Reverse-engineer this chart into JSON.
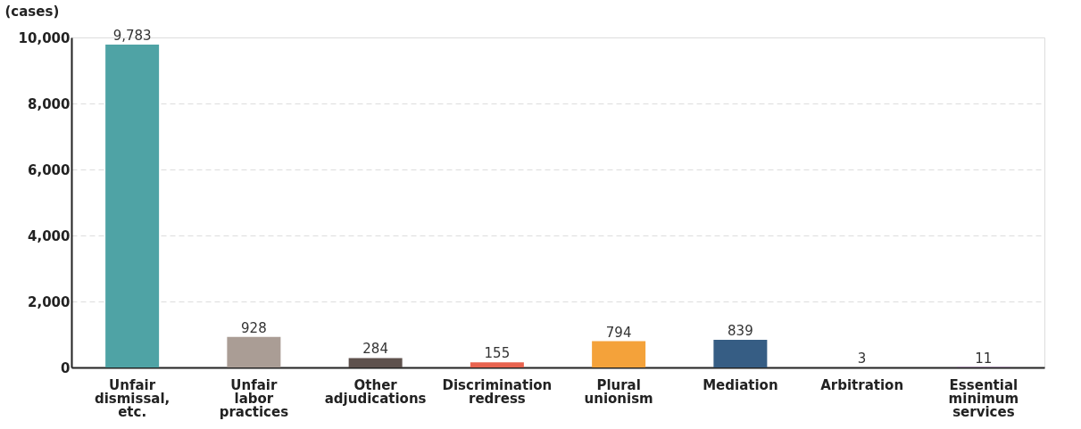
{
  "chart_data": {
    "type": "bar",
    "ylabel": "(cases)",
    "categories": [
      "Unfair dismissal, etc.",
      "Unfair labor practices",
      "Other adjudications",
      "Discrimination redress",
      "Plural unionism",
      "Mediation",
      "Arbitration",
      "Essential minimum services"
    ],
    "values": [
      9783,
      928,
      284,
      155,
      794,
      839,
      3,
      11
    ],
    "colors": [
      "#4fa3a5",
      "#aa9d95",
      "#5e514d",
      "#e8634f",
      "#f4a23a",
      "#365d84",
      "#6b9dc6",
      "#9a72a6"
    ],
    "value_labels": [
      "9,783",
      "928",
      "284",
      "155",
      "794",
      "839",
      "3",
      "11"
    ],
    "ylim": [
      0,
      10000
    ],
    "yticks": [
      {
        "value": 0,
        "label": "0"
      },
      {
        "value": 2000,
        "label": "2,000"
      },
      {
        "value": 4000,
        "label": "4,000"
      },
      {
        "value": 6000,
        "label": "6,000"
      },
      {
        "value": 8000,
        "label": "8,000"
      },
      {
        "value": 10000,
        "label": "10,000"
      }
    ],
    "grid": "y"
  }
}
